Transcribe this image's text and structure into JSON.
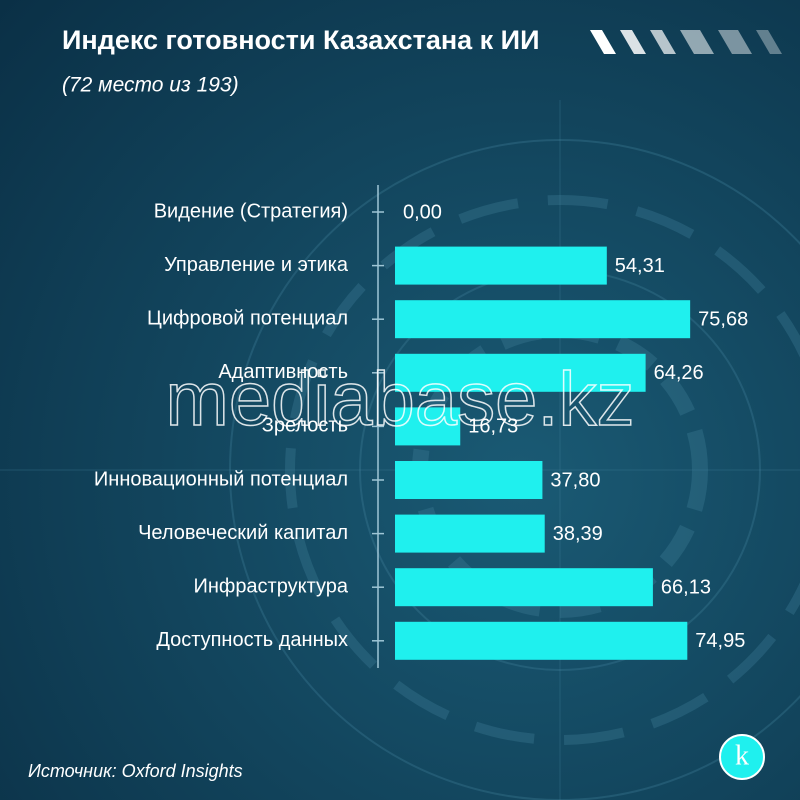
{
  "chart_data": {
    "type": "bar",
    "orientation": "horizontal",
    "title": "Индекс готовности Казахстана к ИИ",
    "subtitle": "(72 место из 193)",
    "source": "Источник: Oxford Insights",
    "watermark": "mediabase.kz",
    "logo": "k",
    "categories": [
      "Видение (Стратегия)",
      "Управление и этика",
      "Цифровой потенциал",
      "Адаптивность",
      "Зрелость",
      "Инновационный потенциал",
      "Человеческий капитал",
      "Инфраструктура",
      "Доступность данных"
    ],
    "values": [
      0,
      54.31,
      75.68,
      64.26,
      16.73,
      37.8,
      38.39,
      66.13,
      74.95
    ],
    "value_labels": [
      "0,00",
      "54,31",
      "75,68",
      "64,26",
      "16,73",
      "37,80",
      "38,39",
      "66,13",
      "74,95"
    ],
    "color": "#1ff0ee",
    "xlim": [
      0,
      100
    ]
  }
}
